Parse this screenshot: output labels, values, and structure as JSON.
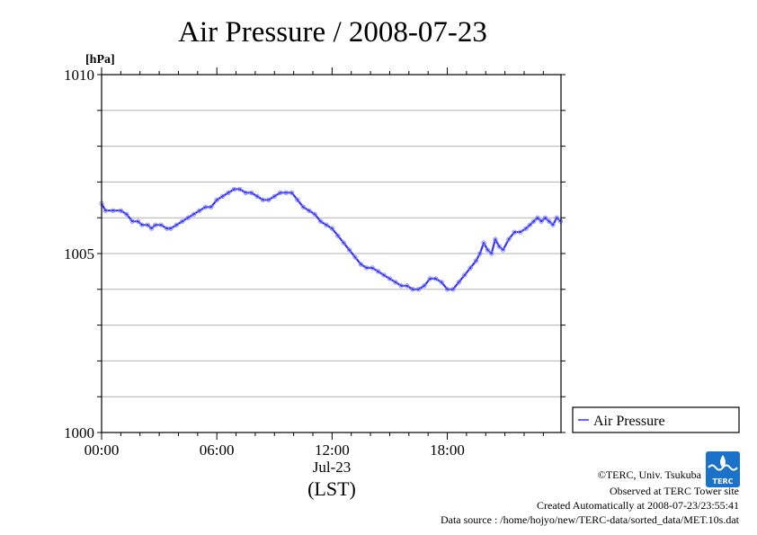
{
  "chart_data": {
    "type": "line",
    "title": "Air Pressure / 2008-07-23",
    "ylabel": "[hPa]",
    "xlabel": "(LST)",
    "date_label": "Jul-23",
    "ylim": [
      1000,
      1010
    ],
    "xlim": [
      0,
      23.92
    ],
    "y_ticks": [
      "1010",
      "1005",
      "1000"
    ],
    "x_ticks": [
      {
        "hour": 0,
        "label": "00:00"
      },
      {
        "hour": 6,
        "label": "06:00"
      },
      {
        "hour": 12,
        "label": "12:00"
      },
      {
        "hour": 18,
        "label": "18:00"
      }
    ],
    "grid": true,
    "legend_position": "right-bottom",
    "series": [
      {
        "name": "Air Pressure",
        "color": "#3333ff",
        "x": [
          0.0,
          0.2,
          0.6,
          1.0,
          1.3,
          1.6,
          1.9,
          2.1,
          2.4,
          2.6,
          2.8,
          3.1,
          3.4,
          3.6,
          3.9,
          4.2,
          4.5,
          4.8,
          5.1,
          5.4,
          5.7,
          6.0,
          6.3,
          6.6,
          6.9,
          7.2,
          7.5,
          7.8,
          8.1,
          8.4,
          8.7,
          9.0,
          9.3,
          9.6,
          9.9,
          10.2,
          10.5,
          10.8,
          11.1,
          11.4,
          11.7,
          12.0,
          12.3,
          12.6,
          12.9,
          13.2,
          13.5,
          13.8,
          14.1,
          14.4,
          14.7,
          15.0,
          15.3,
          15.6,
          15.9,
          16.2,
          16.5,
          16.8,
          17.1,
          17.4,
          17.7,
          18.0,
          18.3,
          18.6,
          18.9,
          19.2,
          19.5,
          19.7,
          19.9,
          20.1,
          20.3,
          20.5,
          20.7,
          20.9,
          21.2,
          21.5,
          21.8,
          22.1,
          22.3,
          22.5,
          22.7,
          22.9,
          23.1,
          23.3,
          23.5,
          23.7,
          23.9
        ],
        "values": [
          1006.4,
          1006.2,
          1006.2,
          1006.2,
          1006.1,
          1005.9,
          1005.9,
          1005.8,
          1005.8,
          1005.7,
          1005.8,
          1005.8,
          1005.7,
          1005.7,
          1005.8,
          1005.9,
          1006.0,
          1006.1,
          1006.2,
          1006.3,
          1006.3,
          1006.5,
          1006.6,
          1006.7,
          1006.8,
          1006.8,
          1006.7,
          1006.7,
          1006.6,
          1006.5,
          1006.5,
          1006.6,
          1006.7,
          1006.7,
          1006.7,
          1006.5,
          1006.3,
          1006.2,
          1006.1,
          1005.9,
          1005.8,
          1005.7,
          1005.5,
          1005.3,
          1005.1,
          1004.9,
          1004.7,
          1004.6,
          1004.6,
          1004.5,
          1004.4,
          1004.3,
          1004.2,
          1004.1,
          1004.1,
          1004.0,
          1004.0,
          1004.1,
          1004.3,
          1004.3,
          1004.2,
          1004.0,
          1004.0,
          1004.2,
          1004.4,
          1004.6,
          1004.8,
          1005.0,
          1005.3,
          1005.1,
          1005.0,
          1005.4,
          1005.2,
          1005.1,
          1005.4,
          1005.6,
          1005.6,
          1005.7,
          1005.8,
          1005.9,
          1006.0,
          1005.9,
          1006.0,
          1005.9,
          1005.8,
          1006.0,
          1005.9
        ]
      }
    ]
  },
  "footer": {
    "copyright": "©TERC, Univ. Tsukuba",
    "observed": "Observed at TERC Tower site",
    "created": "Created Automatically at 2008-07-23/23:55:41",
    "source": "Data source : /home/hojyo/new/TERC-data/sorted_data/MET.10s.dat"
  },
  "logo": {
    "text": "TERC",
    "color": "#1a73c8"
  }
}
